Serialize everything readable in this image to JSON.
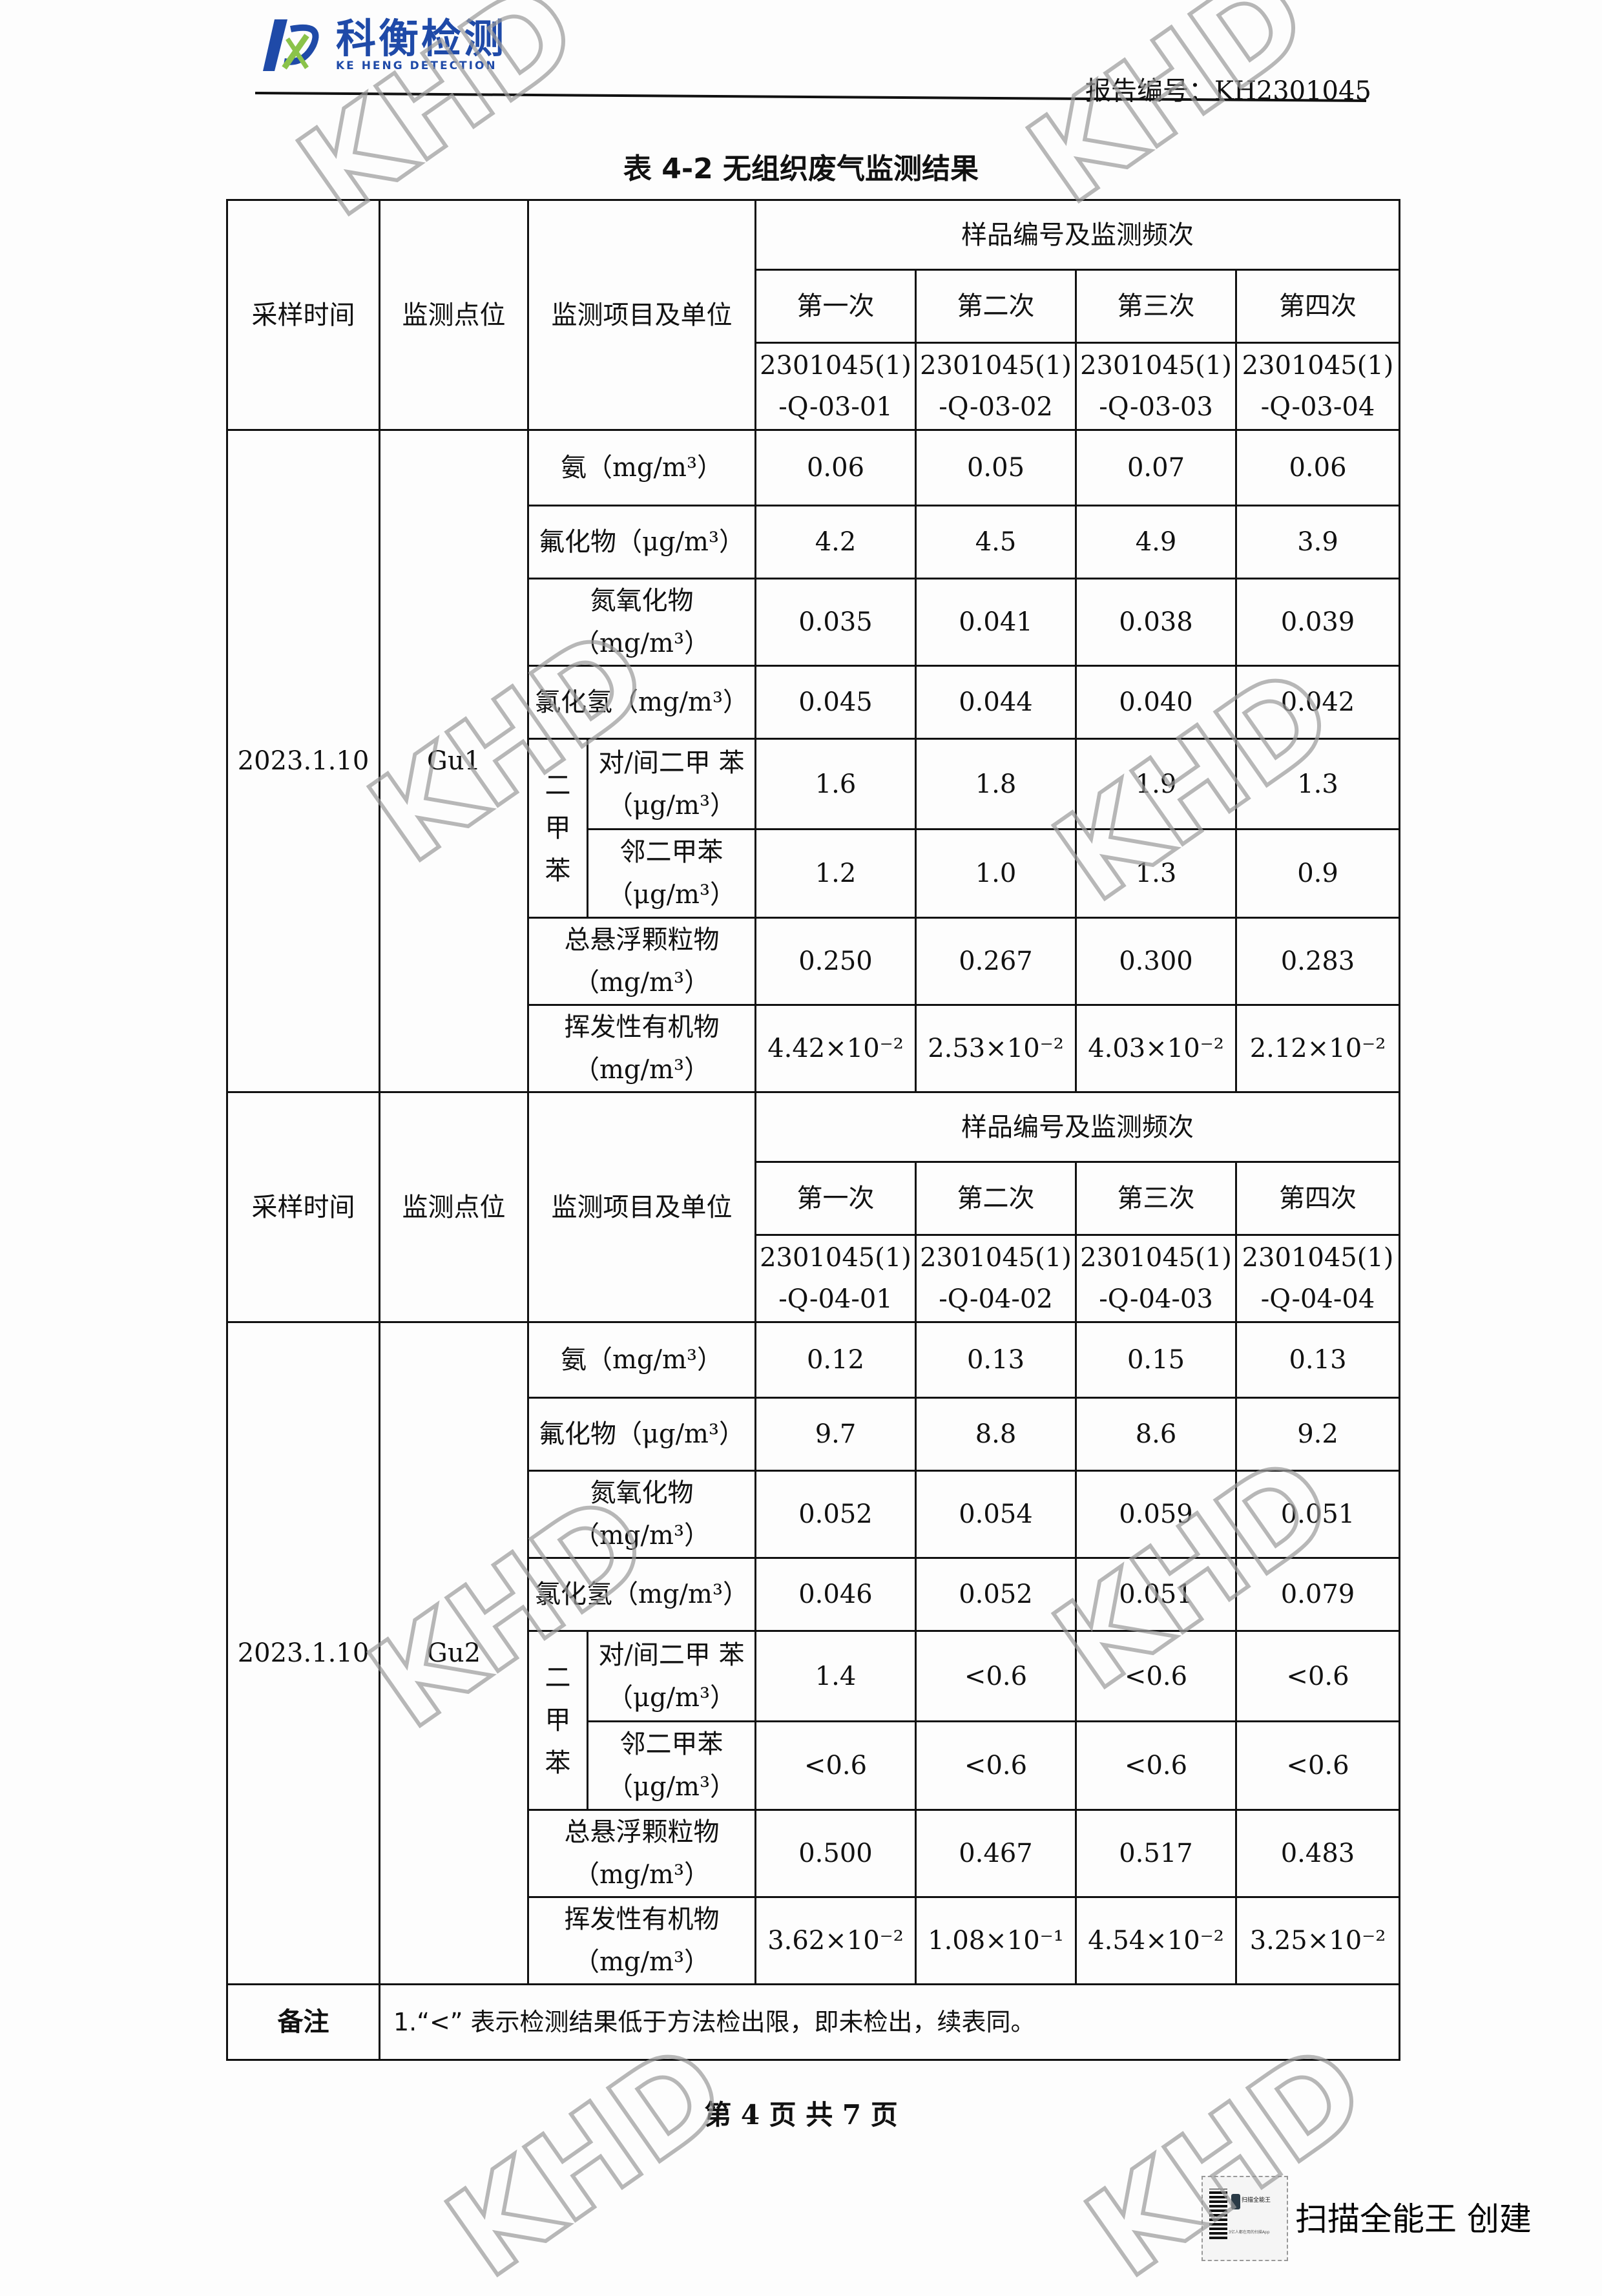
{
  "header": {
    "logo_cn": "科衡检测",
    "logo_en": "KE HENG DETECTION",
    "report_no": "报告编号：KH2301045"
  },
  "title": "表 4-2 无组织废气监测结果",
  "watermark": "KHD",
  "column_headers": {
    "time": "采样时间",
    "point": "监测点位",
    "item": "监测项目及单位",
    "group": "样品编号及监测频次",
    "runs": [
      "第一次",
      "第二次",
      "第三次",
      "第四次"
    ]
  },
  "xylene_group": "二甲苯",
  "sections": [
    {
      "date": "2023.1.10",
      "point": "Gu1",
      "sample_ids": [
        "2301045(1) -Q-03-01",
        "2301045(1) -Q-03-02",
        "2301045(1) -Q-03-03",
        "2301045(1) -Q-03-04"
      ],
      "rows": [
        {
          "item": "氨（mg/m³）",
          "values": [
            "0.06",
            "0.05",
            "0.07",
            "0.06"
          ]
        },
        {
          "item": "氟化物（μg/m³）",
          "values": [
            "4.2",
            "4.5",
            "4.9",
            "3.9"
          ]
        },
        {
          "item": "氮氧化物 （mg/m³）",
          "values": [
            "0.035",
            "0.041",
            "0.038",
            "0.039"
          ]
        },
        {
          "item": "氯化氢（mg/m³）",
          "values": [
            "0.045",
            "0.044",
            "0.040",
            "0.042"
          ]
        },
        {
          "item": "对/间二甲 苯（μg/m³）",
          "values": [
            "1.6",
            "1.8",
            "1.9",
            "1.3"
          ],
          "sub": true
        },
        {
          "item": "邻二甲苯 （μg/m³）",
          "values": [
            "1.2",
            "1.0",
            "1.3",
            "0.9"
          ],
          "sub": true
        },
        {
          "item": "总悬浮颗粒物 （mg/m³）",
          "values": [
            "0.250",
            "0.267",
            "0.300",
            "0.283"
          ]
        },
        {
          "item": "挥发性有机物 （mg/m³）",
          "values": [
            "4.42×10⁻²",
            "2.53×10⁻²",
            "4.03×10⁻²",
            "2.12×10⁻²"
          ]
        }
      ]
    },
    {
      "date": "2023.1.10",
      "point": "Gu2",
      "sample_ids": [
        "2301045(1) -Q-04-01",
        "2301045(1) -Q-04-02",
        "2301045(1) -Q-04-03",
        "2301045(1) -Q-04-04"
      ],
      "rows": [
        {
          "item": "氨（mg/m³）",
          "values": [
            "0.12",
            "0.13",
            "0.15",
            "0.13"
          ]
        },
        {
          "item": "氟化物（μg/m³）",
          "values": [
            "9.7",
            "8.8",
            "8.6",
            "9.2"
          ]
        },
        {
          "item": "氮氧化物 （mg/m³）",
          "values": [
            "0.052",
            "0.054",
            "0.059",
            "0.051"
          ]
        },
        {
          "item": "氯化氢（mg/m³）",
          "values": [
            "0.046",
            "0.052",
            "0.051",
            "0.079"
          ]
        },
        {
          "item": "对/间二甲 苯（μg/m³）",
          "values": [
            "1.4",
            "<0.6",
            "<0.6",
            "<0.6"
          ],
          "sub": true
        },
        {
          "item": "邻二甲苯 （μg/m³）",
          "values": [
            "<0.6",
            "<0.6",
            "<0.6",
            "<0.6"
          ],
          "sub": true
        },
        {
          "item": "总悬浮颗粒物 （mg/m³）",
          "values": [
            "0.500",
            "0.467",
            "0.517",
            "0.483"
          ]
        },
        {
          "item": "挥发性有机物 （mg/m³）",
          "values": [
            "3.62×10⁻²",
            "1.08×10⁻¹",
            "4.54×10⁻²",
            "3.25×10⁻²"
          ]
        }
      ]
    }
  ],
  "remarks": {
    "label": "备注",
    "text": "1.“<” 表示检测结果低于方法检出限，即未检出，续表同。"
  },
  "footer": {
    "page": "第 4 页 共 7 页"
  },
  "scanner": {
    "badge_name": "扫描全能王",
    "badge_tag": "3亿人都在用的扫描App",
    "label": "扫描全能王  创建"
  },
  "colors": {
    "logo_blue": "#1f4aa8",
    "logo_green": "#8bc34a",
    "watermark_gray": "#9a9a9a"
  }
}
